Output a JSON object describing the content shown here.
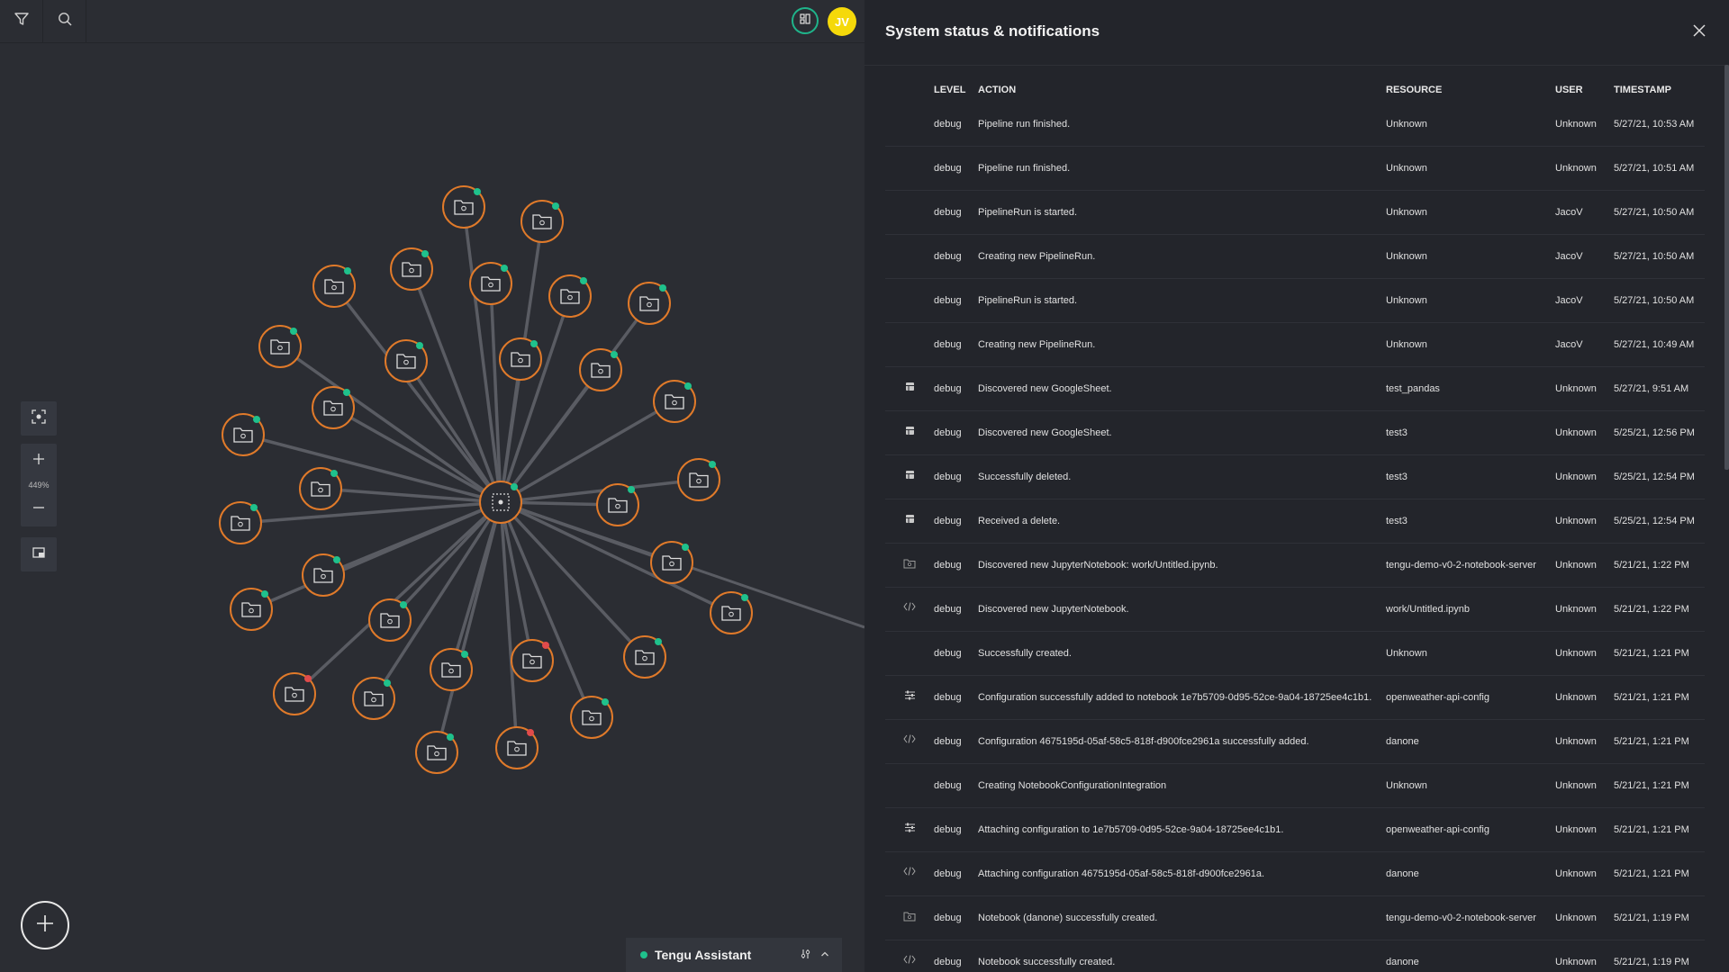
{
  "topbar": {
    "filter_icon": "filter-icon",
    "search_icon": "search-icon",
    "status_icon": "status-grid-icon",
    "avatar_initials": "JV",
    "avatar_color": "#f5d90a"
  },
  "canvas": {
    "zoom_label": "449%",
    "node_ring_color": "#e07a2a",
    "edge_color": "#5a5c63",
    "status_ok_color": "#1fc18c",
    "status_error_color": "#e04b4b"
  },
  "assistant": {
    "label": "Tengu Assistant",
    "status_color": "#1fc18c"
  },
  "panel": {
    "title": "System status & notifications",
    "columns": [
      "LEVEL",
      "ACTION",
      "RESOURCE",
      "USER",
      "TIMESTAMP"
    ],
    "rows": [
      {
        "icon": "",
        "level": "debug",
        "action": "Pipeline run finished.",
        "resource": "Unknown",
        "user": "Unknown",
        "timestamp": "5/27/21, 10:53 AM"
      },
      {
        "icon": "",
        "level": "debug",
        "action": "Pipeline run finished.",
        "resource": "Unknown",
        "user": "Unknown",
        "timestamp": "5/27/21, 10:51 AM"
      },
      {
        "icon": "",
        "level": "debug",
        "action": "PipelineRun is started.",
        "resource": "Unknown",
        "user": "JacoV",
        "timestamp": "5/27/21, 10:50 AM"
      },
      {
        "icon": "",
        "level": "debug",
        "action": "Creating new PipelineRun.",
        "resource": "Unknown",
        "user": "JacoV",
        "timestamp": "5/27/21, 10:50 AM"
      },
      {
        "icon": "",
        "level": "debug",
        "action": "PipelineRun is started.",
        "resource": "Unknown",
        "user": "JacoV",
        "timestamp": "5/27/21, 10:50 AM"
      },
      {
        "icon": "",
        "level": "debug",
        "action": "Creating new PipelineRun.",
        "resource": "Unknown",
        "user": "JacoV",
        "timestamp": "5/27/21, 10:49 AM"
      },
      {
        "icon": "sheet-icon",
        "level": "debug",
        "action": "Discovered new GoogleSheet.",
        "resource": "test_pandas",
        "user": "Unknown",
        "timestamp": "5/27/21, 9:51 AM"
      },
      {
        "icon": "sheet-icon",
        "level": "debug",
        "action": "Discovered new GoogleSheet.",
        "resource": "test3",
        "user": "Unknown",
        "timestamp": "5/25/21, 12:56 PM"
      },
      {
        "icon": "sheet-icon",
        "level": "debug",
        "action": "Successfully deleted.",
        "resource": "test3",
        "user": "Unknown",
        "timestamp": "5/25/21, 12:54 PM"
      },
      {
        "icon": "sheet-icon",
        "level": "debug",
        "action": "Received a delete.",
        "resource": "test3",
        "user": "Unknown",
        "timestamp": "5/25/21, 12:54 PM"
      },
      {
        "icon": "folder-icon",
        "level": "debug",
        "action": "Discovered new JupyterNotebook: work/Untitled.ipynb.",
        "resource": "tengu-demo-v0-2-notebook-server",
        "user": "Unknown",
        "timestamp": "5/21/21, 1:22 PM"
      },
      {
        "icon": "code-icon",
        "level": "debug",
        "action": "Discovered new JupyterNotebook.",
        "resource": "work/Untitled.ipynb",
        "user": "Unknown",
        "timestamp": "5/21/21, 1:22 PM"
      },
      {
        "icon": "",
        "level": "debug",
        "action": "Successfully created.",
        "resource": "Unknown",
        "user": "Unknown",
        "timestamp": "5/21/21, 1:21 PM"
      },
      {
        "icon": "sliders-icon",
        "level": "debug",
        "action": "Configuration successfully added to notebook 1e7b5709-0d95-52ce-9a04-18725ee4c1b1.",
        "resource": "openweather-api-config",
        "user": "Unknown",
        "timestamp": "5/21/21, 1:21 PM"
      },
      {
        "icon": "code-icon",
        "level": "debug",
        "action": "Configuration 4675195d-05af-58c5-818f-d900fce2961a successfully added.",
        "resource": "danone",
        "user": "Unknown",
        "timestamp": "5/21/21, 1:21 PM"
      },
      {
        "icon": "",
        "level": "debug",
        "action": "Creating NotebookConfigurationIntegration",
        "resource": "Unknown",
        "user": "Unknown",
        "timestamp": "5/21/21, 1:21 PM"
      },
      {
        "icon": "sliders-icon",
        "level": "debug",
        "action": "Attaching configuration to 1e7b5709-0d95-52ce-9a04-18725ee4c1b1.",
        "resource": "openweather-api-config",
        "user": "Unknown",
        "timestamp": "5/21/21, 1:21 PM"
      },
      {
        "icon": "code-icon",
        "level": "debug",
        "action": "Attaching configuration 4675195d-05af-58c5-818f-d900fce2961a.",
        "resource": "danone",
        "user": "Unknown",
        "timestamp": "5/21/21, 1:21 PM"
      },
      {
        "icon": "folder-icon",
        "level": "debug",
        "action": "Notebook (danone) successfully created.",
        "resource": "tengu-demo-v0-2-notebook-server",
        "user": "Unknown",
        "timestamp": "5/21/21, 1:19 PM"
      },
      {
        "icon": "code-icon",
        "level": "debug",
        "action": "Notebook successfully created.",
        "resource": "danone",
        "user": "Unknown",
        "timestamp": "5/21/21, 1:19 PM"
      }
    ]
  }
}
